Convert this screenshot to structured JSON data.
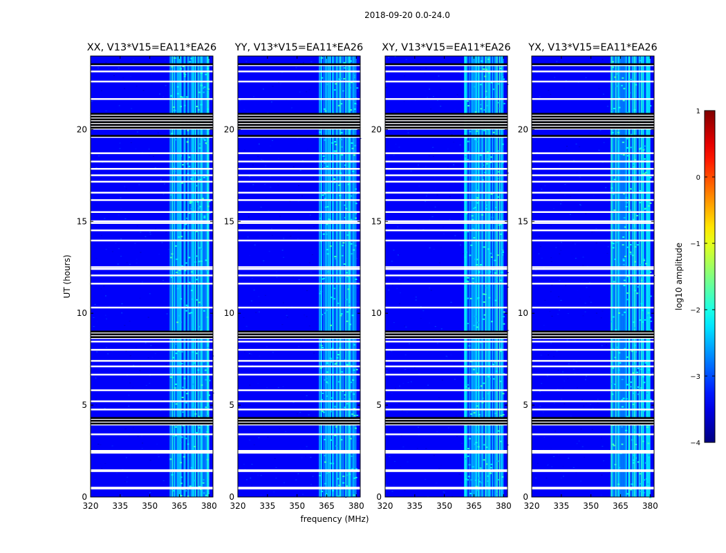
{
  "chart_data": {
    "type": "heatmap",
    "suptitle": "2018-09-20 0.0-24.0",
    "xlabel": "frequency (MHz)",
    "ylabel": "UT (hours)",
    "xlim": [
      320,
      382
    ],
    "ylim": [
      0,
      24
    ],
    "xticks": [
      320,
      335,
      350,
      365,
      380
    ],
    "yticks": [
      0,
      5,
      10,
      15,
      20
    ],
    "panels": [
      {
        "title": "XX, V13*V15=EA11*EA26",
        "band_mhz": [
          360,
          380
        ]
      },
      {
        "title": "YY, V13*V15=EA11*EA26",
        "band_mhz": [
          361,
          380
        ]
      },
      {
        "title": "XY, V13*V15=EA11*EA26",
        "band_mhz": [
          360,
          380
        ]
      },
      {
        "title": "YX, V13*V15=EA11*EA26",
        "band_mhz": [
          360,
          380
        ]
      }
    ],
    "background_log10_amplitude": -3.4,
    "band_log10_amplitude": -2.3,
    "flagged_rows_ut_white": [
      0.45,
      0.5,
      1.4,
      1.45,
      2.4,
      2.45,
      2.5,
      3.4,
      4.75,
      5.2,
      5.8,
      6.65,
      7.1,
      7.4,
      8.0,
      8.45,
      10.3,
      11.6,
      12.05,
      12.4,
      12.5,
      13.95,
      14.5,
      14.9,
      15.0,
      15.5,
      16.15,
      16.55,
      17.15,
      17.5,
      17.85,
      18.25,
      18.7,
      21.65,
      22.6,
      23.15
    ],
    "black_bands_ut": [
      [
        4.0,
        4.35
      ],
      [
        8.65,
        9.05
      ],
      [
        20.1,
        20.9
      ],
      [
        23.5,
        23.6
      ],
      [
        19.6,
        19.7
      ]
    ],
    "colorbar": {
      "label": "log10 amplitude",
      "range": [
        -4,
        1
      ],
      "ticks": [
        1,
        0,
        -1,
        -2,
        -3,
        -4
      ],
      "tick_labels": [
        "1",
        "0",
        "−1",
        "−2",
        "−3",
        "−4"
      ],
      "colormap": "jet",
      "colors": [
        "#00007f",
        "#0000ff",
        "#007fff",
        "#00ffff",
        "#7fff7f",
        "#ffff00",
        "#ff7f00",
        "#ff0000",
        "#7f0000"
      ]
    }
  }
}
